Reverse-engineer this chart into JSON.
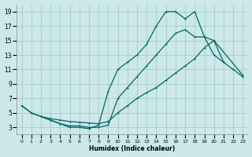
{
  "xlabel": "Humidex (Indice chaleur)",
  "bg_color": "#cce8e8",
  "grid_color": "#aacccc",
  "line_color": "#006666",
  "xlim": [
    -0.5,
    23.5
  ],
  "ylim": [
    2,
    20
  ],
  "xticks": [
    0,
    1,
    2,
    3,
    4,
    5,
    6,
    7,
    8,
    9,
    10,
    11,
    12,
    13,
    14,
    15,
    16,
    17,
    18,
    19,
    20,
    21,
    22,
    23
  ],
  "yticks": [
    3,
    5,
    7,
    9,
    11,
    13,
    15,
    17,
    19
  ],
  "line1_x": [
    0,
    1,
    2,
    3,
    4,
    5,
    6,
    7,
    8,
    9,
    10,
    11,
    12,
    13,
    14,
    15,
    16,
    17,
    18,
    19,
    20,
    21
  ],
  "line1_y": [
    6,
    5,
    4.5,
    4.0,
    3.5,
    3.0,
    3.0,
    2.8,
    3.3,
    8.0,
    11,
    12,
    13,
    14.5,
    17,
    19,
    19,
    18,
    19,
    15.5,
    13,
    12
  ],
  "line2_x": [
    0,
    1,
    2,
    3,
    4,
    5,
    6,
    7,
    8,
    9,
    10,
    11,
    12,
    13,
    14,
    15,
    16,
    17,
    18,
    19,
    20,
    21,
    22,
    23
  ],
  "line2_y": [
    6,
    5,
    4.5,
    4.0,
    3.5,
    3.2,
    3.2,
    3.0,
    3.0,
    3.3,
    7.0,
    8.5,
    10,
    11.5,
    13,
    14.5,
    16,
    16.5,
    15.5,
    15.5,
    15,
    12,
    11,
    10
  ],
  "line3_x": [
    2,
    3,
    4,
    5,
    6,
    7,
    8,
    9,
    10,
    11,
    12,
    13,
    14,
    15,
    16,
    17,
    18,
    19,
    20,
    23
  ],
  "line3_y": [
    4.5,
    4.2,
    4.0,
    3.8,
    3.7,
    3.6,
    3.5,
    3.8,
    5.0,
    6.0,
    7.0,
    7.8,
    8.5,
    9.5,
    10.5,
    11.5,
    12.5,
    14.0,
    15.0,
    10.2
  ]
}
